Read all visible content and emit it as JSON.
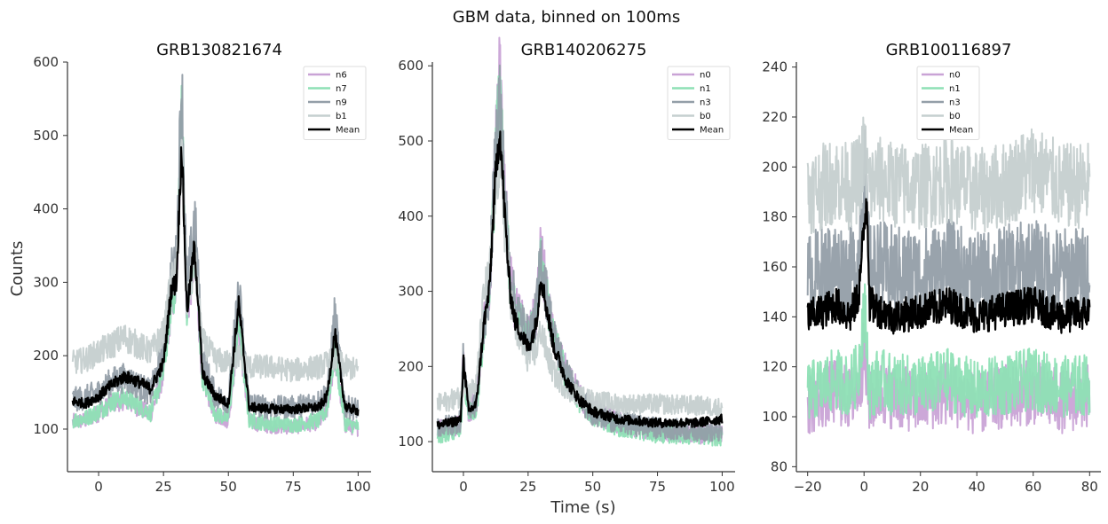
{
  "suptitle": "GBM data, binned on 100ms",
  "ylabel": "Counts",
  "xlabel": "Time (s)",
  "colors": {
    "n6": "#c9a3d6",
    "n7": "#8ee0b5",
    "n9": "#939ea8",
    "b1": "#c5cfcf",
    "Mean": "#000000"
  },
  "chart_data": [
    {
      "type": "line",
      "title": "GRB130821674",
      "xlabel": "",
      "ylabel": "Counts",
      "xlim": [
        -12,
        105
      ],
      "ylim": [
        42,
        600
      ],
      "xticks": [
        0,
        25,
        50,
        75,
        100
      ],
      "yticks": [
        100,
        200,
        300,
        400,
        500,
        600
      ],
      "legend": "upper-right",
      "series": [
        {
          "name": "n6",
          "color": "#c9a3d6",
          "x": [
            -10,
            -5,
            0,
            5,
            10,
            15,
            20,
            25,
            28,
            30,
            32,
            34,
            37,
            40,
            45,
            50,
            54,
            58,
            65,
            75,
            85,
            88,
            91,
            95,
            100
          ],
          "y": [
            110,
            112,
            122,
            135,
            140,
            130,
            120,
            175,
            270,
            290,
            540,
            250,
            340,
            170,
            120,
            112,
            240,
            110,
            105,
            103,
            110,
            125,
            200,
            105,
            100
          ]
        },
        {
          "name": "n7",
          "color": "#8ee0b5",
          "x": [
            -10,
            -5,
            0,
            5,
            10,
            15,
            20,
            25,
            28,
            30,
            32,
            34,
            37,
            40,
            45,
            50,
            54,
            58,
            65,
            75,
            85,
            88,
            91,
            95,
            100
          ],
          "y": [
            112,
            115,
            124,
            137,
            143,
            133,
            122,
            178,
            275,
            295,
            555,
            255,
            345,
            173,
            122,
            115,
            245,
            112,
            108,
            106,
            112,
            128,
            205,
            108,
            103
          ]
        },
        {
          "name": "n9",
          "color": "#939ea8",
          "x": [
            -10,
            -5,
            0,
            5,
            10,
            15,
            20,
            25,
            28,
            30,
            32,
            34,
            37,
            40,
            45,
            50,
            54,
            58,
            65,
            75,
            85,
            88,
            91,
            95,
            100
          ],
          "y": [
            140,
            143,
            150,
            165,
            170,
            160,
            150,
            205,
            310,
            330,
            575,
            280,
            390,
            195,
            145,
            138,
            290,
            135,
            130,
            130,
            138,
            150,
            255,
            130,
            128
          ]
        },
        {
          "name": "b1",
          "color": "#c5cfcf",
          "x": [
            -10,
            -5,
            0,
            5,
            10,
            15,
            20,
            25,
            28,
            30,
            32,
            34,
            37,
            40,
            45,
            50,
            54,
            58,
            65,
            75,
            85,
            88,
            91,
            95,
            100
          ],
          "y": [
            190,
            195,
            205,
            215,
            225,
            215,
            205,
            230,
            300,
            310,
            480,
            270,
            330,
            220,
            195,
            190,
            200,
            185,
            185,
            180,
            185,
            190,
            195,
            185,
            180
          ]
        },
        {
          "name": "Mean",
          "color": "#000000",
          "x": [
            -10,
            -5,
            0,
            5,
            10,
            15,
            20,
            25,
            28,
            30,
            32,
            34,
            37,
            40,
            45,
            50,
            54,
            58,
            65,
            75,
            85,
            88,
            91,
            95,
            100
          ],
          "y": [
            138,
            135,
            145,
            160,
            172,
            165,
            155,
            190,
            290,
            300,
            490,
            260,
            350,
            175,
            145,
            135,
            270,
            130,
            128,
            127,
            130,
            145,
            230,
            130,
            125
          ]
        }
      ]
    },
    {
      "type": "line",
      "title": "GRB140206275",
      "xlabel": "Time (s)",
      "ylabel": "",
      "xlim": [
        -12,
        105
      ],
      "ylim": [
        60,
        605
      ],
      "xticks": [
        0,
        25,
        50,
        75,
        100
      ],
      "yticks": [
        100,
        200,
        300,
        400,
        500,
        600
      ],
      "legend": "upper-right",
      "series": [
        {
          "name": "n0",
          "color": "#c9a3d6",
          "x": [
            -10,
            -5,
            -1,
            0,
            2,
            5,
            8,
            10,
            12,
            14,
            16,
            18,
            20,
            25,
            28,
            30,
            32,
            35,
            40,
            45,
            50,
            60,
            75,
            90,
            100
          ],
          "y": [
            115,
            118,
            125,
            210,
            140,
            150,
            260,
            300,
            450,
            580,
            430,
            320,
            280,
            240,
            270,
            360,
            300,
            240,
            190,
            160,
            140,
            125,
            115,
            110,
            110
          ]
        },
        {
          "name": "n1",
          "color": "#8ee0b5",
          "x": [
            -10,
            -5,
            -1,
            0,
            2,
            5,
            8,
            10,
            12,
            14,
            16,
            18,
            20,
            25,
            28,
            30,
            32,
            35,
            40,
            45,
            50,
            60,
            75,
            90,
            100
          ],
          "y": [
            110,
            112,
            120,
            200,
            135,
            145,
            255,
            295,
            445,
            570,
            425,
            315,
            278,
            235,
            265,
            350,
            295,
            235,
            185,
            155,
            135,
            120,
            110,
            108,
            105
          ]
        },
        {
          "name": "n3",
          "color": "#939ea8",
          "x": [
            -10,
            -5,
            -1,
            0,
            2,
            5,
            8,
            10,
            12,
            14,
            16,
            18,
            20,
            25,
            28,
            30,
            32,
            35,
            40,
            45,
            50,
            60,
            75,
            90,
            100
          ],
          "y": [
            120,
            122,
            128,
            215,
            142,
            152,
            262,
            302,
            455,
            565,
            428,
            318,
            282,
            238,
            268,
            345,
            298,
            238,
            188,
            158,
            138,
            125,
            118,
            115,
            112
          ]
        },
        {
          "name": "b0",
          "color": "#c5cfcf",
          "x": [
            -10,
            -5,
            -1,
            0,
            2,
            5,
            8,
            10,
            12,
            14,
            16,
            18,
            20,
            25,
            28,
            30,
            32,
            35,
            40,
            45,
            50,
            60,
            75,
            90,
            100
          ],
          "y": [
            150,
            155,
            160,
            190,
            165,
            175,
            300,
            320,
            420,
            480,
            380,
            300,
            250,
            210,
            220,
            250,
            220,
            190,
            170,
            160,
            155,
            150,
            150,
            148,
            145
          ]
        },
        {
          "name": "Mean",
          "color": "#000000",
          "x": [
            -10,
            -5,
            -1,
            0,
            2,
            5,
            8,
            10,
            12,
            14,
            16,
            18,
            20,
            25,
            28,
            30,
            32,
            35,
            40,
            45,
            50,
            60,
            75,
            90,
            100
          ],
          "y": [
            122,
            125,
            130,
            210,
            140,
            150,
            260,
            300,
            430,
            520,
            400,
            300,
            260,
            225,
            255,
            320,
            280,
            225,
            180,
            155,
            140,
            130,
            125,
            125,
            130
          ]
        }
      ]
    },
    {
      "type": "line",
      "title": "GRB100116897",
      "xlabel": "",
      "ylabel": "",
      "xlim": [
        -24,
        84
      ],
      "ylim": [
        78,
        242
      ],
      "xticks": [
        -20,
        0,
        20,
        40,
        60,
        80
      ],
      "yticks": [
        80,
        100,
        120,
        140,
        160,
        180,
        200,
        220,
        240
      ],
      "legend": "upper-center",
      "series": [
        {
          "name": "n0",
          "color": "#c9a3d6",
          "x": [
            -20,
            -15,
            -10,
            -5,
            -2,
            0,
            2,
            5,
            10,
            20,
            30,
            40,
            50,
            60,
            70,
            80
          ],
          "y": [
            105,
            108,
            110,
            107,
            112,
            125,
            105,
            110,
            108,
            106,
            110,
            105,
            108,
            110,
            106,
            108
          ]
        },
        {
          "name": "n1",
          "color": "#8ee0b5",
          "x": [
            -20,
            -15,
            -10,
            -5,
            -2,
            0,
            2,
            5,
            10,
            20,
            30,
            40,
            50,
            60,
            70,
            80
          ],
          "y": [
            110,
            112,
            115,
            112,
            118,
            145,
            110,
            115,
            113,
            112,
            115,
            110,
            113,
            115,
            112,
            113
          ]
        },
        {
          "name": "n3",
          "color": "#939ea8",
          "x": [
            -20,
            -15,
            -10,
            -5,
            -2,
            0,
            2,
            5,
            10,
            20,
            30,
            40,
            50,
            60,
            70,
            80
          ],
          "y": [
            155,
            158,
            160,
            157,
            162,
            200,
            158,
            160,
            158,
            157,
            160,
            155,
            158,
            160,
            157,
            158
          ]
        },
        {
          "name": "b0",
          "color": "#c5cfcf",
          "x": [
            -20,
            -15,
            -10,
            -5,
            -2,
            0,
            2,
            5,
            10,
            20,
            30,
            40,
            50,
            60,
            70,
            80
          ],
          "y": [
            190,
            192,
            195,
            192,
            195,
            205,
            192,
            195,
            193,
            192,
            195,
            190,
            193,
            200,
            192,
            193
          ]
        },
        {
          "name": "Mean",
          "color": "#000000",
          "x": [
            -20,
            -15,
            -10,
            -5,
            -2,
            0,
            1,
            2,
            5,
            10,
            20,
            30,
            40,
            50,
            60,
            70,
            80
          ],
          "y": [
            140,
            142,
            145,
            140,
            148,
            175,
            190,
            145,
            143,
            140,
            142,
            145,
            140,
            143,
            145,
            140,
            142
          ]
        }
      ]
    }
  ]
}
